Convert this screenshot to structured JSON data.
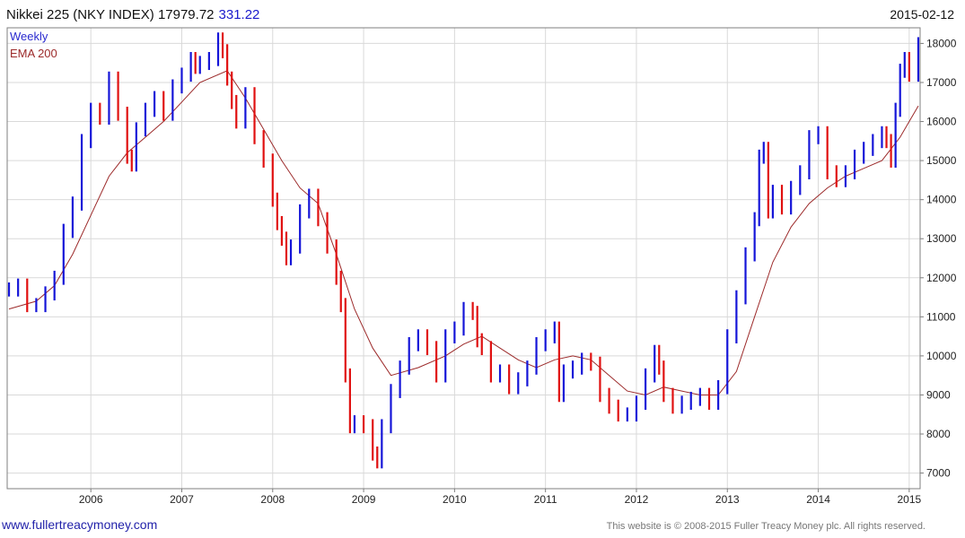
{
  "header": {
    "title": "Nikkei 225 (NKY INDEX) 17979.72",
    "change": "331.22",
    "date": "2015-02-12"
  },
  "footer": {
    "website": "www.fullertreacymoney.com",
    "copyright": "This website is © 2008-2015 Fuller Treacy Money plc. All rights reserved."
  },
  "colors": {
    "up_bar": "#1515d8",
    "down_bar": "#e01010",
    "ema": "#9c2a2a",
    "grid": "#d9d9d9",
    "frame": "#7f7f7f"
  },
  "chart_data": {
    "type": "line",
    "title": "Nikkei 225 (NKY INDEX) 17979.72",
    "subtitle": "331.22",
    "xlabel": "",
    "ylabel": "",
    "xlim": [
      2005.08,
      2015.12
    ],
    "ylim": [
      6600,
      18400
    ],
    "grid": true,
    "legend_position": "top-left",
    "x_ticks": [
      {
        "label": "2006",
        "value": 2006
      },
      {
        "label": "2007",
        "value": 2007
      },
      {
        "label": "2008",
        "value": 2008
      },
      {
        "label": "2009",
        "value": 2009
      },
      {
        "label": "2010",
        "value": 2010
      },
      {
        "label": "2011",
        "value": 2011
      },
      {
        "label": "2012",
        "value": 2012
      },
      {
        "label": "2013",
        "value": 2013
      },
      {
        "label": "2014",
        "value": 2014
      },
      {
        "label": "2015",
        "value": 2015
      }
    ],
    "y_ticks": [
      7000,
      8000,
      9000,
      10000,
      11000,
      12000,
      13000,
      14000,
      15000,
      16000,
      17000,
      18000
    ],
    "series": [
      {
        "name": "Weekly",
        "style": "ohlc-bars",
        "x": [
          2005.1,
          2005.2,
          2005.3,
          2005.4,
          2005.5,
          2005.6,
          2005.7,
          2005.8,
          2005.9,
          2006.0,
          2006.1,
          2006.2,
          2006.3,
          2006.4,
          2006.45,
          2006.5,
          2006.6,
          2006.7,
          2006.8,
          2006.9,
          2007.0,
          2007.1,
          2007.15,
          2007.2,
          2007.3,
          2007.4,
          2007.45,
          2007.5,
          2007.55,
          2007.6,
          2007.7,
          2007.8,
          2007.9,
          2008.0,
          2008.05,
          2008.1,
          2008.15,
          2008.2,
          2008.3,
          2008.4,
          2008.5,
          2008.6,
          2008.7,
          2008.75,
          2008.8,
          2008.85,
          2008.9,
          2009.0,
          2009.1,
          2009.15,
          2009.2,
          2009.3,
          2009.4,
          2009.5,
          2009.6,
          2009.7,
          2009.8,
          2009.9,
          2010.0,
          2010.1,
          2010.2,
          2010.25,
          2010.3,
          2010.4,
          2010.5,
          2010.6,
          2010.7,
          2010.8,
          2010.9,
          2011.0,
          2011.1,
          2011.15,
          2011.2,
          2011.3,
          2011.4,
          2011.5,
          2011.6,
          2011.7,
          2011.8,
          2011.9,
          2012.0,
          2012.1,
          2012.2,
          2012.25,
          2012.3,
          2012.4,
          2012.5,
          2012.6,
          2012.7,
          2012.8,
          2012.9,
          2013.0,
          2013.1,
          2013.2,
          2013.3,
          2013.35,
          2013.4,
          2013.45,
          2013.5,
          2013.6,
          2013.7,
          2013.8,
          2013.9,
          2014.0,
          2014.1,
          2014.2,
          2014.3,
          2014.4,
          2014.5,
          2014.6,
          2014.7,
          2014.75,
          2014.8,
          2014.85,
          2014.9,
          2014.95,
          2015.0,
          2015.1
        ],
        "values": [
          11700,
          11800,
          11300,
          11300,
          11600,
          12000,
          13200,
          13900,
          15500,
          16300,
          16100,
          17100,
          16200,
          15100,
          14900,
          15800,
          16300,
          16600,
          16200,
          16900,
          17200,
          17600,
          17400,
          17500,
          17600,
          18100,
          17800,
          17100,
          16500,
          16000,
          16700,
          15600,
          15000,
          14000,
          13400,
          13000,
          12500,
          12800,
          13700,
          14100,
          13500,
          12800,
          12000,
          11300,
          9500,
          8200,
          8300,
          8200,
          7500,
          7300,
          8200,
          9100,
          9700,
          10300,
          10500,
          10200,
          9500,
          10500,
          10700,
          11200,
          11100,
          10400,
          10200,
          9500,
          9600,
          9200,
          9400,
          9700,
          10300,
          10500,
          10700,
          9000,
          9600,
          9700,
          9900,
          9800,
          9000,
          8700,
          8500,
          8500,
          8800,
          9500,
          10100,
          9700,
          9000,
          8700,
          8800,
          8900,
          9000,
          8800,
          9200,
          10500,
          11500,
          12600,
          13500,
          15100,
          15300,
          13700,
          14200,
          13800,
          14300,
          14700,
          15600,
          15700,
          14700,
          14500,
          14700,
          15100,
          15300,
          15500,
          15700,
          15500,
          15000,
          16300,
          17300,
          17600,
          17200,
          17980
        ]
      },
      {
        "name": "EMA 200",
        "style": "line",
        "x": [
          2005.1,
          2005.4,
          2005.6,
          2005.8,
          2006.0,
          2006.2,
          2006.4,
          2006.6,
          2006.8,
          2007.0,
          2007.2,
          2007.5,
          2007.7,
          2007.9,
          2008.1,
          2008.3,
          2008.5,
          2008.7,
          2008.9,
          2009.1,
          2009.3,
          2009.6,
          2009.9,
          2010.1,
          2010.3,
          2010.5,
          2010.7,
          2010.9,
          2011.1,
          2011.3,
          2011.5,
          2011.7,
          2011.9,
          2012.1,
          2012.3,
          2012.5,
          2012.7,
          2012.9,
          2013.1,
          2013.3,
          2013.5,
          2013.7,
          2013.9,
          2014.1,
          2014.3,
          2014.5,
          2014.7,
          2014.9,
          2015.1
        ],
        "values": [
          11200,
          11400,
          11800,
          12600,
          13600,
          14600,
          15200,
          15600,
          16000,
          16500,
          17000,
          17300,
          16600,
          15800,
          15000,
          14300,
          13900,
          12600,
          11200,
          10200,
          9500,
          9700,
          10000,
          10300,
          10500,
          10200,
          9900,
          9700,
          9900,
          10000,
          9900,
          9500,
          9100,
          9000,
          9200,
          9100,
          9000,
          9000,
          9600,
          11000,
          12400,
          13300,
          13900,
          14300,
          14600,
          14800,
          15000,
          15600,
          16400
        ]
      }
    ]
  }
}
